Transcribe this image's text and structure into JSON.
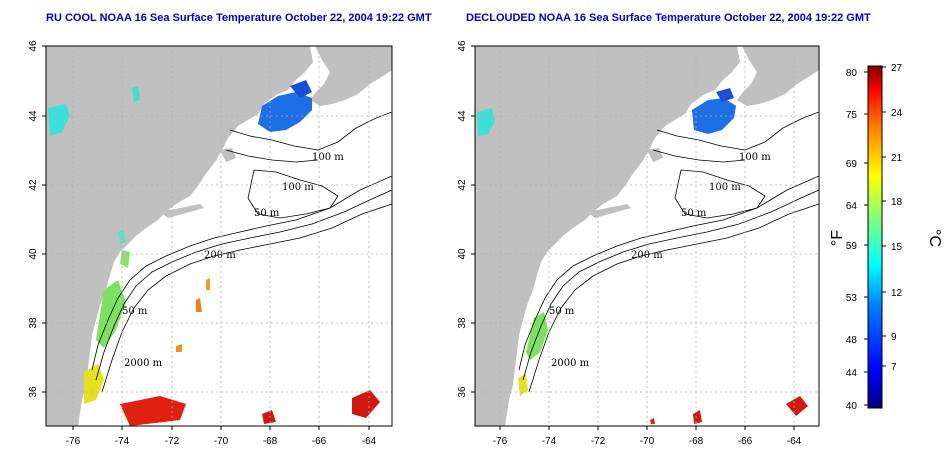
{
  "panels": [
    {
      "title": "RU COOL NOAA 16 Sea Surface Temperature October 22, 2004 19:22 GMT",
      "contours": {
        "c100": "100 m",
        "c100b": "100 m",
        "c50": "50 m",
        "c200": "200 m",
        "c50b": "50 m",
        "c2000": "2000 m"
      }
    },
    {
      "title": "DECLOUDED NOAA 16 Sea Surface Temperature October 22, 2004 19:22 GMT",
      "contours": {
        "c100": "100 m",
        "c100b": "100 m",
        "c50": "50 m",
        "c200": "200 m",
        "c50b": "50 m",
        "c2000": "2000 m"
      }
    }
  ],
  "axes": {
    "x_ticks": [
      "-76",
      "-74",
      "-72",
      "-70",
      "-68",
      "-66",
      "-64"
    ],
    "y_ticks": [
      "46",
      "44",
      "42",
      "40",
      "38",
      "36"
    ],
    "lon_range": [
      -77,
      -63
    ],
    "lat_range": [
      35,
      46
    ]
  },
  "colorbar": {
    "fahrenheit_ticks": [
      "80",
      "75",
      "69",
      "64",
      "59",
      "53",
      "48",
      "44",
      "40"
    ],
    "celsius_ticks": [
      "27",
      "24",
      "21",
      "18",
      "15",
      "12",
      "9",
      "7"
    ],
    "f_label": "°F",
    "c_label": "°C",
    "colors": [
      "#00007f",
      "#0000ff",
      "#0080ff",
      "#00ffff",
      "#80ff80",
      "#ffff00",
      "#ff8000",
      "#ff0000",
      "#7f0000"
    ]
  },
  "colors": {
    "land": "#c0c0c0",
    "ocean": "#ffffff",
    "grid": "#b0b0b0"
  }
}
